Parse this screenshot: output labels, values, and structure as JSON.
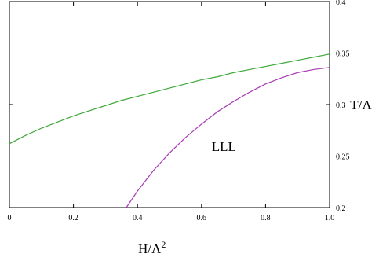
{
  "chart_data": {
    "type": "line",
    "title": "",
    "xlabel": "H/Λ",
    "xlabel_superscript": "2",
    "ylabel": "T/Λ",
    "xlim": [
      0,
      1.0
    ],
    "ylim": [
      0.2,
      0.4
    ],
    "y_axis_side": "right",
    "grid": false,
    "legend": "none",
    "x_ticks": [
      {
        "value": 0,
        "label": "0"
      },
      {
        "value": 0.2,
        "label": "0.2"
      },
      {
        "value": 0.4,
        "label": "0.4"
      },
      {
        "value": 0.6,
        "label": "0.6"
      },
      {
        "value": 0.8,
        "label": "0.8"
      },
      {
        "value": 1.0,
        "label": "1.0"
      }
    ],
    "y_ticks": [
      {
        "value": 0.2,
        "label": "0.2"
      },
      {
        "value": 0.25,
        "label": "0.25"
      },
      {
        "value": 0.3,
        "label": "0.3"
      },
      {
        "value": 0.35,
        "label": "0.35"
      },
      {
        "value": 0.4,
        "label": "0.4"
      }
    ],
    "series": [
      {
        "color": "#3ea83a",
        "x": [
          0,
          0.05,
          0.1,
          0.15,
          0.2,
          0.25,
          0.3,
          0.35,
          0.4,
          0.45,
          0.5,
          0.55,
          0.6,
          0.65,
          0.7,
          0.75,
          0.8,
          0.85,
          0.9,
          0.95,
          1.0
        ],
        "y": [
          0.262,
          0.27,
          0.277,
          0.283,
          0.289,
          0.294,
          0.299,
          0.304,
          0.308,
          0.312,
          0.316,
          0.32,
          0.324,
          0.327,
          0.331,
          0.334,
          0.337,
          0.34,
          0.343,
          0.346,
          0.349
        ]
      },
      {
        "color": "#a83ab5",
        "x": [
          0.365,
          0.4,
          0.45,
          0.5,
          0.55,
          0.6,
          0.65,
          0.7,
          0.75,
          0.8,
          0.85,
          0.9,
          0.95,
          1.0
        ],
        "y": [
          0.2,
          0.216,
          0.236,
          0.253,
          0.268,
          0.281,
          0.293,
          0.303,
          0.312,
          0.32,
          0.326,
          0.331,
          0.334,
          0.336
        ]
      }
    ],
    "annotations": [
      {
        "text": "LLL",
        "x": 0.67,
        "y": 0.255
      }
    ]
  }
}
